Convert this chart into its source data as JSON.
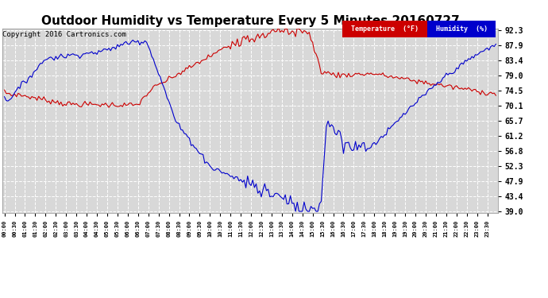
{
  "title": "Outdoor Humidity vs Temperature Every 5 Minutes 20160727",
  "copyright": "Copyright 2016 Cartronics.com",
  "ylabel_right_values": [
    92.3,
    87.9,
    83.4,
    79.0,
    74.5,
    70.1,
    65.7,
    61.2,
    56.8,
    52.3,
    47.9,
    43.4,
    39.0
  ],
  "ymin": 39.0,
  "ymax": 92.3,
  "temp_color": "#cc0000",
  "humidity_color": "#0000cc",
  "background_color": "#ffffff",
  "plot_bg_color": "#d8d8d8",
  "grid_color": "#ffffff",
  "title_fontsize": 11,
  "copyright_fontsize": 6.5,
  "legend_temp_label": "Temperature  (°F)",
  "legend_humidity_label": "Humidity  (%)"
}
